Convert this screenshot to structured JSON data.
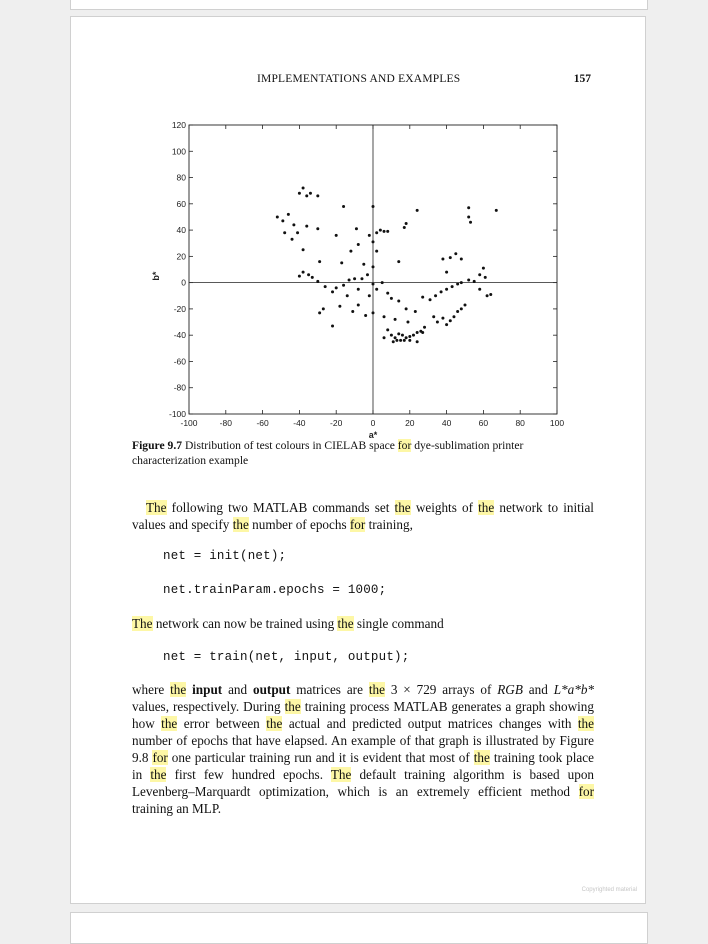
{
  "page": {
    "running_head": "IMPLEMENTATIONS AND EXAMPLES",
    "page_number": "157",
    "copyright": "Copyrighted material"
  },
  "figure": {
    "caption_label": "Figure 9.7",
    "caption_text": "Distribution of test colours in CIELAB space for dye-sublimation printer characterization example"
  },
  "chart_data": {
    "type": "scatter",
    "xlabel": "a*",
    "ylabel": "b*",
    "xlim": [
      -100,
      100
    ],
    "ylim": [
      -100,
      120
    ],
    "xticks": [
      -100,
      -80,
      -60,
      -40,
      -20,
      0,
      20,
      40,
      60,
      80,
      100
    ],
    "yticks": [
      -100,
      -80,
      -60,
      -40,
      -20,
      0,
      20,
      40,
      60,
      80,
      100,
      120
    ],
    "grid": false,
    "series": [
      {
        "points": [
          [
            -40,
            68
          ],
          [
            -38,
            72
          ],
          [
            -36,
            66
          ],
          [
            -34,
            68
          ],
          [
            -30,
            66
          ],
          [
            -16,
            58
          ],
          [
            0,
            58
          ],
          [
            24,
            55
          ],
          [
            67,
            55
          ],
          [
            52,
            57
          ],
          [
            -52,
            50
          ],
          [
            -49,
            47
          ],
          [
            -46,
            52
          ],
          [
            -43,
            44
          ],
          [
            -41,
            38
          ],
          [
            -36,
            43
          ],
          [
            -30,
            41
          ],
          [
            -9,
            41
          ],
          [
            2,
            38
          ],
          [
            4,
            40
          ],
          [
            6,
            39
          ],
          [
            8,
            39
          ],
          [
            17,
            42
          ],
          [
            18,
            45
          ],
          [
            52,
            50
          ],
          [
            53,
            46
          ],
          [
            -48,
            38
          ],
          [
            -44,
            33
          ],
          [
            -20,
            36
          ],
          [
            -12,
            24
          ],
          [
            -8,
            29
          ],
          [
            -2,
            36
          ],
          [
            0,
            31
          ],
          [
            2,
            24
          ],
          [
            -38,
            25
          ],
          [
            -29,
            16
          ],
          [
            -17,
            15
          ],
          [
            -5,
            14
          ],
          [
            0,
            12
          ],
          [
            14,
            16
          ],
          [
            38,
            18
          ],
          [
            42,
            19
          ],
          [
            45,
            22
          ],
          [
            48,
            18
          ],
          [
            60,
            11
          ],
          [
            -40,
            5
          ],
          [
            -38,
            8
          ],
          [
            -35,
            6
          ],
          [
            -33,
            4
          ],
          [
            -30,
            1
          ],
          [
            -26,
            -3
          ],
          [
            -22,
            -7
          ],
          [
            -20,
            -4
          ],
          [
            -16,
            -2
          ],
          [
            -13,
            2
          ],
          [
            -10,
            3
          ],
          [
            -8,
            -5
          ],
          [
            -6,
            3
          ],
          [
            -3,
            6
          ],
          [
            0,
            -1
          ],
          [
            2,
            -5
          ],
          [
            -2,
            -10
          ],
          [
            -14,
            -10
          ],
          [
            -18,
            -18
          ],
          [
            -11,
            -22
          ],
          [
            -27,
            -20
          ],
          [
            -29,
            -23
          ],
          [
            -22,
            -33
          ],
          [
            5,
            0
          ],
          [
            8,
            -8
          ],
          [
            10,
            -12
          ],
          [
            14,
            -14
          ],
          [
            18,
            -20
          ],
          [
            23,
            -22
          ],
          [
            6,
            -26
          ],
          [
            12,
            -28
          ],
          [
            19,
            -30
          ],
          [
            -4,
            -25
          ],
          [
            -8,
            -17
          ],
          [
            0,
            -23
          ],
          [
            27,
            -11
          ],
          [
            31,
            -13
          ],
          [
            34,
            -10
          ],
          [
            37,
            -7
          ],
          [
            40,
            -5
          ],
          [
            43,
            -3
          ],
          [
            46,
            -1
          ],
          [
            48,
            0
          ],
          [
            52,
            2
          ],
          [
            55,
            1
          ],
          [
            58,
            -5
          ],
          [
            62,
            -10
          ],
          [
            64,
            -9
          ],
          [
            61,
            4
          ],
          [
            40,
            8
          ],
          [
            58,
            6
          ],
          [
            33,
            -26
          ],
          [
            35,
            -30
          ],
          [
            38,
            -27
          ],
          [
            40,
            -32
          ],
          [
            42,
            -29
          ],
          [
            44,
            -26
          ],
          [
            46,
            -22
          ],
          [
            48,
            -20
          ],
          [
            50,
            -17
          ],
          [
            28,
            -34
          ],
          [
            24,
            -38
          ],
          [
            22,
            -40
          ],
          [
            20,
            -41
          ],
          [
            18,
            -42
          ],
          [
            16,
            -40
          ],
          [
            14,
            -39
          ],
          [
            12,
            -42
          ],
          [
            10,
            -40
          ],
          [
            8,
            -36
          ],
          [
            6,
            -42
          ],
          [
            11,
            -45
          ],
          [
            13,
            -44
          ],
          [
            15,
            -44
          ],
          [
            17,
            -44
          ],
          [
            20,
            -44
          ],
          [
            24,
            -45
          ],
          [
            26,
            -37
          ],
          [
            27,
            -38
          ]
        ]
      }
    ]
  },
  "body": {
    "p1": [
      {
        "t": "The",
        "hl": true
      },
      {
        "t": " following two MATLAB commands set "
      },
      {
        "t": "the",
        "hl": true
      },
      {
        "t": " weights of "
      },
      {
        "t": "the",
        "hl": true
      },
      {
        "t": " network to initial values and specify "
      },
      {
        "t": "the",
        "hl": true
      },
      {
        "t": " number of epochs "
      },
      {
        "t": "for",
        "hl": true
      },
      {
        "t": " training,"
      }
    ],
    "code1": "net = init(net);",
    "code2": "net.trainParam.epochs = 1000;",
    "p2": [
      {
        "t": "The",
        "hl": true
      },
      {
        "t": " network can now be trained using "
      },
      {
        "t": "the",
        "hl": true
      },
      {
        "t": " single command"
      }
    ],
    "code3": "net = train(net, input, output);",
    "p3": [
      {
        "t": "where "
      },
      {
        "t": "the",
        "hl": true
      },
      {
        "t": " "
      },
      {
        "t": "input",
        "b": true
      },
      {
        "t": " and "
      },
      {
        "t": "output",
        "b": true
      },
      {
        "t": " matrices are "
      },
      {
        "t": "the",
        "hl": true
      },
      {
        "t": " 3 × 729 arrays of "
      },
      {
        "t": "RGB",
        "i": true
      },
      {
        "t": " and "
      },
      {
        "t": "L*a*b*",
        "i": true
      },
      {
        "t": " values, respectively. During "
      },
      {
        "t": "the",
        "hl": true
      },
      {
        "t": " training process MATLAB generates a graph showing how "
      },
      {
        "t": "the",
        "hl": true
      },
      {
        "t": " error between "
      },
      {
        "t": "the",
        "hl": true
      },
      {
        "t": " actual and predicted output matrices changes with "
      },
      {
        "t": "the",
        "hl": true
      },
      {
        "t": " number of epochs that have elapsed. An example of that graph is illustrated by Figure 9.8 "
      },
      {
        "t": "for",
        "hl": true
      },
      {
        "t": " one particular training run and it is evident that most of "
      },
      {
        "t": "the",
        "hl": true
      },
      {
        "t": " training took place in "
      },
      {
        "t": "the",
        "hl": true
      },
      {
        "t": " first few hundred epochs. "
      },
      {
        "t": "The",
        "hl": true
      },
      {
        "t": " default training algorithm is based upon Levenberg–Marquardt optimization, which is an extremely efficient method "
      },
      {
        "t": "for",
        "hl": true
      },
      {
        "t": " training an MLP."
      }
    ]
  }
}
